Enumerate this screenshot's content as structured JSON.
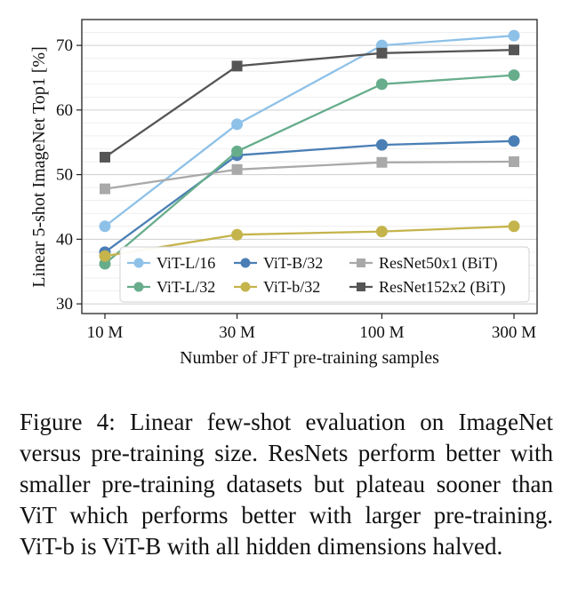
{
  "chart_data": {
    "type": "line",
    "x": [
      10,
      30,
      100,
      300
    ],
    "xscale": "log",
    "xticks": [
      "10 M",
      "30 M",
      "100 M",
      "300 M"
    ],
    "xlabel": "Number of JFT pre-training samples",
    "ylabel": "Linear 5-shot ImageNet Top1 [%]",
    "ylim": [
      28.5,
      74
    ],
    "yticks": [
      30,
      40,
      50,
      60,
      70
    ],
    "grid": true,
    "legend_position": "bottom-right",
    "series": [
      {
        "name": "ViT-L/16",
        "values": [
          42.0,
          57.8,
          70.0,
          71.5
        ],
        "color": "#8ec1e8",
        "marker": "circle"
      },
      {
        "name": "ViT-B/32",
        "values": [
          38.0,
          53.0,
          54.6,
          55.2
        ],
        "color": "#4a7fb5",
        "marker": "circle"
      },
      {
        "name": "ResNet50x1 (BiT)",
        "values": [
          47.8,
          50.8,
          51.9,
          52.0
        ],
        "color": "#a9a9a9",
        "marker": "square"
      },
      {
        "name": "ViT-L/32",
        "values": [
          36.2,
          53.6,
          64.0,
          65.4
        ],
        "color": "#67ad8c",
        "marker": "circle"
      },
      {
        "name": "ViT-b/32",
        "values": [
          37.4,
          40.7,
          41.2,
          42.0
        ],
        "color": "#c4b44b",
        "marker": "circle"
      },
      {
        "name": "ResNet152x2 (BiT)",
        "values": [
          52.7,
          66.8,
          68.8,
          69.3
        ],
        "color": "#555555",
        "marker": "square"
      }
    ]
  },
  "caption": "Figure 4: Linear few-shot evaluation on ImageNet versus pre-training size. ResNets perform better with smaller pre-training datasets but plateau sooner than ViT which performs better with larger pre-training. ViT-b is ViT-B with all hidden dimensions halved."
}
